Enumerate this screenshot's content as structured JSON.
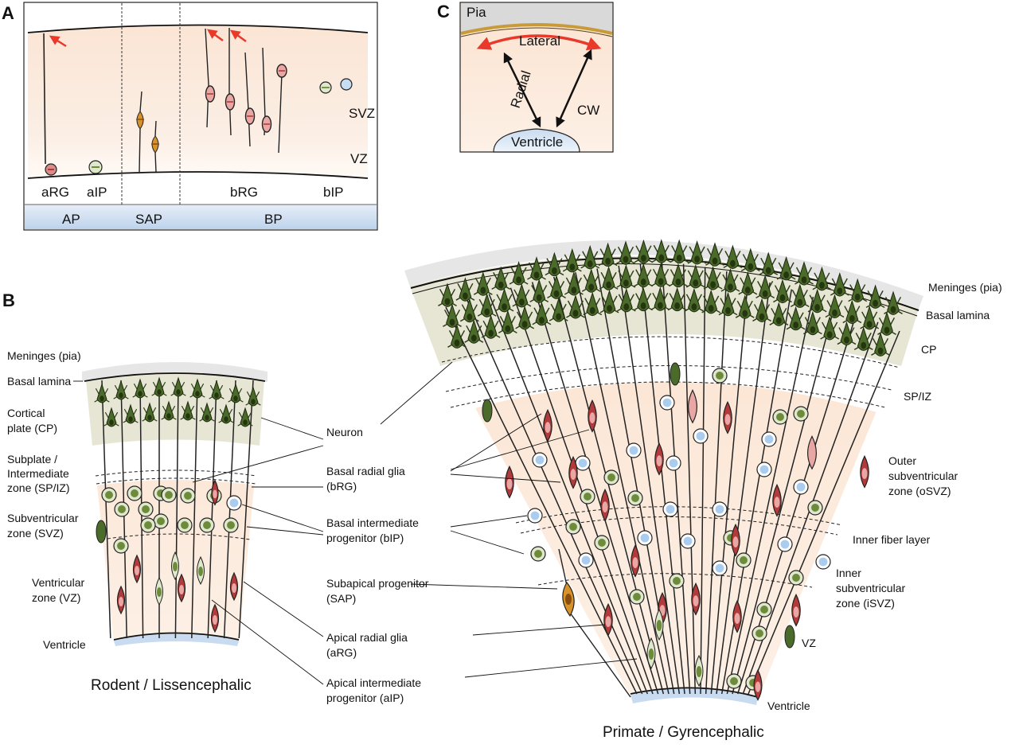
{
  "panels": {
    "a": "A",
    "b": "B",
    "c": "C"
  },
  "panel_a": {
    "zones": [
      "SVZ",
      "VZ"
    ],
    "cells": [
      "aRG",
      "aIP",
      "bRG",
      "bIP"
    ],
    "groups": [
      "AP",
      "SAP",
      "BP"
    ]
  },
  "panel_b": {
    "rodent_title": "Rodent / Lissencephalic",
    "primate_title": "Primate / Gyrencephalic",
    "rodent_labels": {
      "meninges": "Meninges (pia)",
      "basal_lamina": "Basal lamina",
      "cp_1": "Cortical",
      "cp_2": "plate (CP)",
      "spiz_1": "Subplate /",
      "spiz_2": "Intermediate",
      "spiz_3": "zone (SP/IZ)",
      "svz_1": "Subventricular",
      "svz_2": "zone (SVZ)",
      "vz_1": "Ventricular",
      "vz_2": "zone (VZ)",
      "ventricle": "Ventricle"
    },
    "cell_types": {
      "neuron": "Neuron",
      "brg_1": "Basal radial glia",
      "brg_2": "(bRG)",
      "bip_1": "Basal intermediate",
      "bip_2": "progenitor (bIP)",
      "sap_1": "Subapical progenitor",
      "sap_2": "(SAP)",
      "arg_1": "Apical radial glia",
      "arg_2": "(aRG)",
      "aip_1": "Apical intermediate",
      "aip_2": "progenitor (aIP)"
    },
    "primate_labels": {
      "meninges": "Meninges (pia)",
      "basal_lamina": "Basal lamina",
      "cp": "CP",
      "spiz": "SP/IZ",
      "osvz_1": "Outer",
      "osvz_2": "subventricular",
      "osvz_3": "zone (oSVZ)",
      "ifl": "Inner fiber layer",
      "isvz_1": "Inner",
      "isvz_2": "subventricular",
      "isvz_3": "zone (iSVZ)",
      "vz": "VZ",
      "ventricle": "Ventricle"
    }
  },
  "panel_c": {
    "pia": "Pia",
    "lateral": "Lateral",
    "radial": "Radial",
    "cw": "CW",
    "ventricle": "Ventricle"
  },
  "colors": {
    "neuron": "#4b6b2a",
    "radial_glia": "#b33a3a",
    "radial_glia_light": "#e8a7a4",
    "ip_green": "#6e8a3b",
    "ip_light": "#dfe8cc",
    "bip_blue": "#a9ccef",
    "sap_orange": "#d8922a",
    "svz_tint": "#fbe3d2",
    "cp_tint": "#e9e7d6",
    "arrow_red": "#e8392b"
  }
}
